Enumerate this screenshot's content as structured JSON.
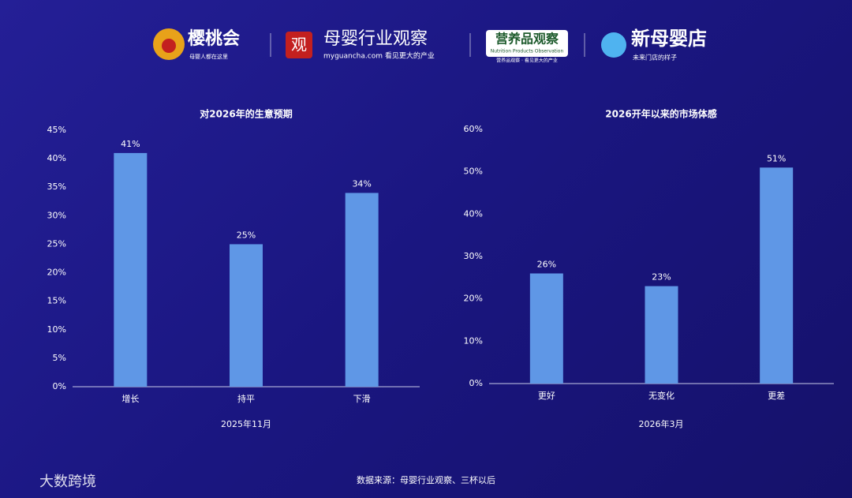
{
  "header": {
    "logos": [
      {
        "name": "樱桃会",
        "tagline": "母婴人都在这里"
      },
      {
        "mark": "观",
        "name": "母婴行业观察",
        "tagline": "myguancha.com 看见更大的产业"
      },
      {
        "name": "营养品观察",
        "subname": "Nutrition Products Observation",
        "tagline": "营养品观察 · 看见更大的产业"
      },
      {
        "name": "新母婴店",
        "tagline": "未来门店的样子"
      }
    ]
  },
  "chart_data": [
    {
      "type": "bar",
      "title": "对2026年的生意预期",
      "xlabel": "2025年11月",
      "categories": [
        "增长",
        "持平",
        "下滑"
      ],
      "values": [
        41,
        25,
        34
      ],
      "value_labels": [
        "41%",
        "25%",
        "34%"
      ],
      "color": "#5f97e6",
      "ylim": [
        0,
        45
      ],
      "yticks": [
        {
          "value": 0,
          "label": "0%"
        },
        {
          "value": 5,
          "label": "5%"
        },
        {
          "value": 10,
          "label": "10%"
        },
        {
          "value": 15,
          "label": "15%"
        },
        {
          "value": 20,
          "label": "20%"
        },
        {
          "value": 25,
          "label": "25%"
        },
        {
          "value": 30,
          "label": "30%"
        },
        {
          "value": 35,
          "label": "35%"
        },
        {
          "value": 40,
          "label": "40%"
        },
        {
          "value": 45,
          "label": "45%"
        }
      ],
      "grid": false
    },
    {
      "type": "bar",
      "title": "2026开年以来的市场体感",
      "xlabel": "2026年3月",
      "categories": [
        "更好",
        "无变化",
        "更差"
      ],
      "values": [
        26,
        23,
        51
      ],
      "value_labels": [
        "26%",
        "23%",
        "51%"
      ],
      "color": "#5f97e6",
      "ylim": [
        0,
        60
      ],
      "yticks": [
        {
          "value": 0,
          "label": "0%"
        },
        {
          "value": 10,
          "label": "10%"
        },
        {
          "value": 20,
          "label": "20%"
        },
        {
          "value": 30,
          "label": "30%"
        },
        {
          "value": 40,
          "label": "40%"
        },
        {
          "value": 50,
          "label": "50%"
        },
        {
          "value": 60,
          "label": "60%"
        }
      ],
      "grid": false
    }
  ],
  "source": "数据来源：母婴行业观察、三杯以后",
  "watermark": "大数跨境"
}
